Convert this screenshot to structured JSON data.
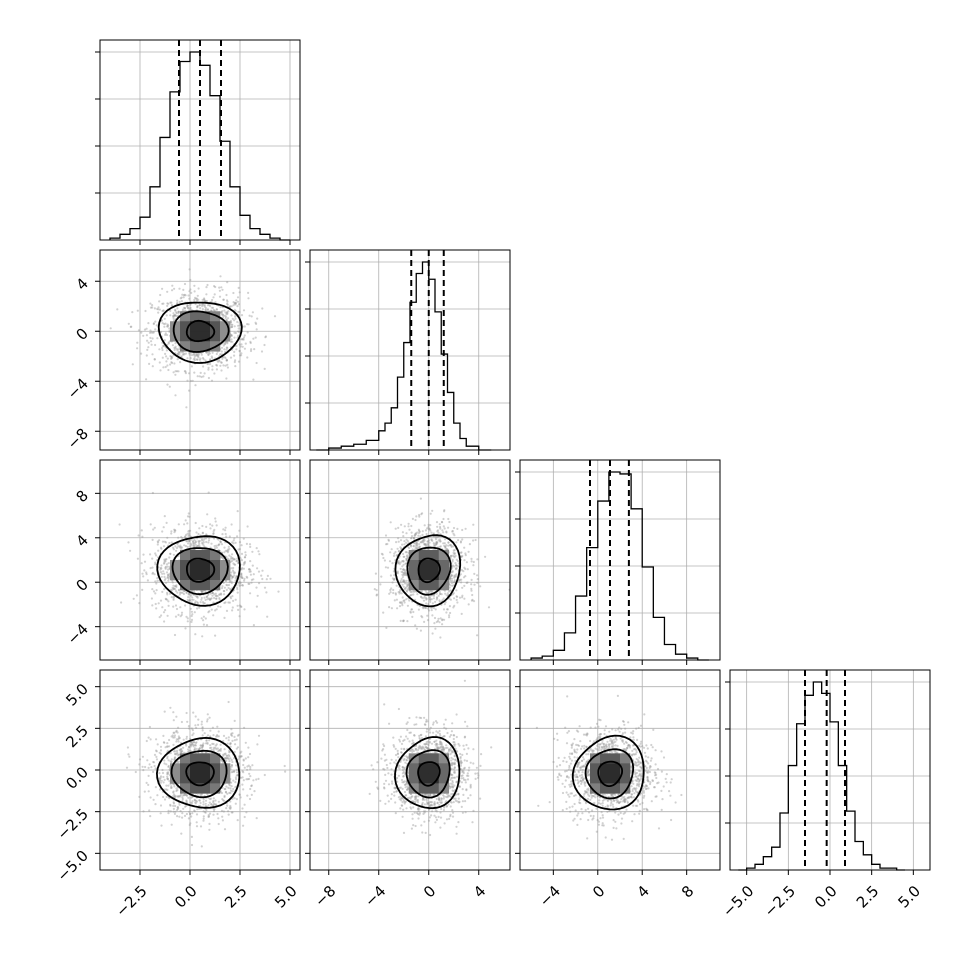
{
  "chart_data": {
    "type": "corner",
    "grid": true,
    "parameters": [
      {
        "range": [
          -4.5,
          5.5
        ],
        "mean": 0.5,
        "sigma": 1.1,
        "quantiles": [
          -0.55,
          0.5,
          1.55
        ],
        "ticks": [
          -2.5,
          0.0,
          2.5,
          5.0
        ],
        "tick_labels": [
          "−2.5",
          "0.0",
          "2.5",
          "5.0"
        ]
      },
      {
        "range": [
          -9.5,
          6.5
        ],
        "mean": 0.0,
        "sigma": 1.4,
        "quantiles": [
          -1.4,
          0.0,
          1.2
        ],
        "ticks": [
          -8,
          -4,
          0,
          4
        ],
        "tick_labels": [
          "−8",
          "−4",
          "0",
          "4"
        ]
      },
      {
        "range": [
          -7,
          11
        ],
        "mean": 1.1,
        "sigma": 1.8,
        "quantiles": [
          -0.7,
          1.1,
          2.8
        ],
        "ticks": [
          -4,
          0,
          4,
          8
        ],
        "tick_labels": [
          "−4",
          "0",
          "4",
          "8"
        ]
      },
      {
        "range": [
          -6,
          6
        ],
        "mean": -0.2,
        "sigma": 1.2,
        "quantiles": [
          -1.5,
          -0.2,
          0.9
        ],
        "ticks": [
          -5.0,
          -2.5,
          0.0,
          2.5,
          5.0
        ],
        "tick_labels": [
          "−5.0",
          "−2.5",
          "0.0",
          "2.5",
          "5.0"
        ]
      }
    ],
    "histograms": [
      {
        "param": 0,
        "bins": [
          -4.0,
          -3.5,
          -3.0,
          -2.5,
          -2.0,
          -1.5,
          -1.0,
          -0.5,
          0.0,
          0.5,
          1.0,
          1.5,
          2.0,
          2.5,
          3.0,
          3.5,
          4.0,
          4.5,
          5.0
        ],
        "counts": [
          1,
          3,
          6,
          12,
          28,
          54,
          78,
          94,
          99,
          92,
          76,
          52,
          28,
          13,
          6,
          3,
          1,
          0
        ]
      },
      {
        "param": 1,
        "bins": [
          -9.0,
          -8.0,
          -7.0,
          -6.0,
          -5.0,
          -4.0,
          -3.5,
          -3.0,
          -2.5,
          -2.0,
          -1.5,
          -1.0,
          -0.5,
          0.0,
          0.5,
          1.0,
          1.5,
          2.0,
          2.5,
          3.0,
          4.0,
          5.0
        ],
        "counts": [
          0,
          1,
          2,
          3,
          5,
          10,
          14,
          22,
          38,
          56,
          77,
          92,
          98,
          89,
          72,
          50,
          30,
          14,
          6,
          2,
          0
        ]
      },
      {
        "param": 2,
        "bins": [
          -6,
          -5,
          -4,
          -3,
          -2,
          -1,
          0,
          1,
          2,
          3,
          4,
          5,
          6,
          7,
          8,
          9,
          10
        ],
        "counts": [
          1,
          2,
          5,
          14,
          33,
          58,
          82,
          97,
          96,
          78,
          48,
          22,
          8,
          3,
          1,
          0
        ]
      },
      {
        "param": 3,
        "bins": [
          -5.5,
          -5.0,
          -4.5,
          -4.0,
          -3.5,
          -3.0,
          -2.5,
          -2.0,
          -1.5,
          -1.0,
          -0.5,
          0.0,
          0.5,
          1.0,
          1.5,
          2.0,
          2.5,
          3.0,
          3.5,
          4.0,
          4.5
        ],
        "counts": [
          0,
          1,
          3,
          7,
          12,
          30,
          55,
          77,
          92,
          99,
          93,
          78,
          55,
          31,
          15,
          8,
          3,
          1,
          1,
          0
        ]
      }
    ],
    "contour_levels_sigma": [
      0.6,
      1.2,
      1.8
    ]
  }
}
